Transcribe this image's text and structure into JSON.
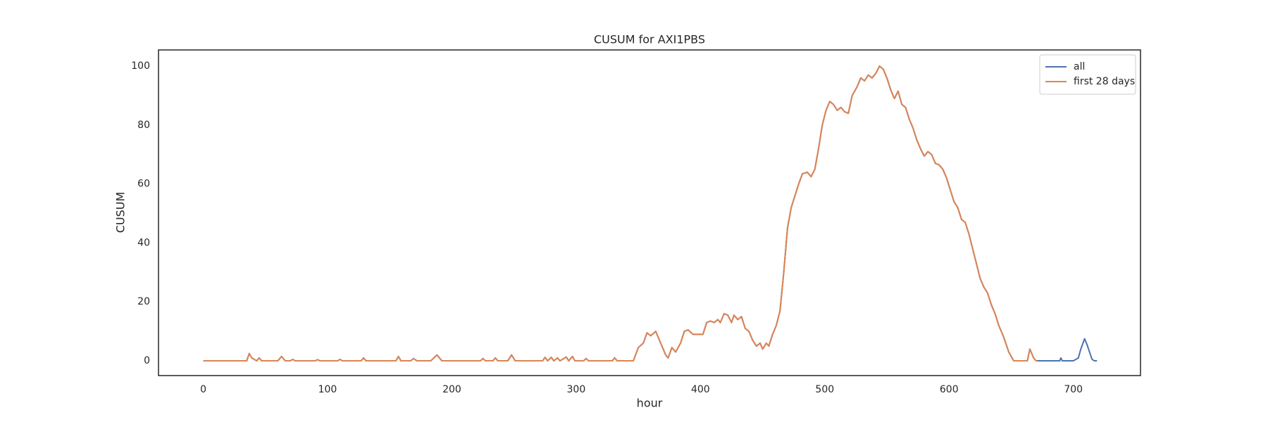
{
  "chart_data": {
    "type": "line",
    "title": "CUSUM for AXI1PBS",
    "x_label": "hour",
    "y_label": "CUSUM",
    "xlim": [
      -36,
      754
    ],
    "ylim": [
      -5,
      105.5
    ],
    "xticks": [
      0,
      100,
      200,
      300,
      400,
      500,
      600,
      700
    ],
    "yticks": [
      0,
      20,
      40,
      60,
      80,
      100
    ],
    "grid": false,
    "legend": "upper right",
    "series": [
      {
        "name": "all",
        "color": "#4c72b0",
        "x": [
          0,
          35,
          37,
          39,
          41,
          43,
          45,
          47,
          60,
          63,
          66,
          70,
          72,
          74,
          90,
          92,
          94,
          108,
          110,
          112,
          127,
          129,
          131,
          155,
          157,
          159,
          167,
          169,
          172,
          183,
          188,
          192,
          223,
          225,
          227,
          233,
          235,
          237,
          245,
          248,
          251,
          273,
          275,
          277,
          280,
          282,
          285,
          287,
          292,
          294,
          297,
          299,
          306,
          308,
          310,
          329,
          331,
          333,
          346,
          350,
          354,
          357,
          360,
          364,
          368,
          372,
          374,
          377,
          380,
          384,
          387,
          390,
          394,
          398,
          402,
          405,
          408,
          411,
          414,
          416,
          419,
          422,
          425,
          427,
          430,
          433,
          436,
          439,
          442,
          445,
          448,
          450,
          453,
          455,
          458,
          461,
          464,
          467,
          470,
          473,
          476,
          479,
          482,
          486,
          489,
          492,
          495,
          498,
          501,
          504,
          507,
          510,
          513,
          516,
          519,
          522,
          526,
          529,
          532,
          535,
          538,
          541,
          544,
          547,
          550,
          553,
          556,
          559,
          562,
          565,
          568,
          571,
          574,
          577,
          580,
          583,
          586,
          589,
          592,
          595,
          598,
          601,
          604,
          607,
          610,
          613,
          616,
          619,
          622,
          625,
          628,
          631,
          634,
          637,
          640,
          644,
          648,
          652,
          663,
          665,
          668,
          670,
          671,
          675,
          689,
          690,
          691,
          700,
          704,
          706,
          709,
          711,
          713,
          715,
          717,
          719
        ],
        "values": [
          0,
          0,
          2.5,
          1,
          0.5,
          0,
          1,
          0,
          0,
          1.5,
          0,
          0,
          0.5,
          0,
          0,
          0.4,
          0,
          0,
          0.5,
          0,
          0,
          1,
          0,
          0,
          1.5,
          0,
          0,
          0.8,
          0,
          0,
          2,
          0,
          0,
          0.8,
          0,
          0,
          1,
          0,
          0,
          2,
          0,
          0,
          1.2,
          0,
          1.2,
          0,
          1,
          0,
          1.3,
          0,
          1.5,
          0,
          0,
          0.8,
          0,
          0,
          1,
          0,
          0,
          4.5,
          6,
          9.5,
          8.5,
          10,
          6,
          2,
          1,
          4.5,
          3,
          6,
          10,
          10.5,
          9,
          9,
          9,
          13,
          13.5,
          13,
          14,
          13,
          16,
          15.5,
          13,
          15.5,
          14,
          15,
          11,
          10,
          7,
          5,
          6,
          4,
          6,
          5,
          9,
          12,
          17,
          30,
          45,
          52,
          56,
          60,
          63.5,
          64,
          62.5,
          65,
          72,
          80,
          85,
          88,
          87,
          85,
          86,
          84.5,
          84,
          90,
          93,
          96,
          95,
          97,
          96,
          97.5,
          100,
          99,
          96,
          92,
          89,
          91.5,
          87,
          86,
          82,
          79,
          75,
          72,
          69.5,
          71,
          70,
          67,
          66.5,
          65,
          62,
          58,
          54,
          52,
          48,
          47,
          43,
          38,
          33,
          28,
          25,
          23,
          19,
          16,
          12,
          8,
          3,
          0,
          0,
          4,
          1,
          0,
          0,
          0,
          0,
          1,
          0,
          0,
          1,
          4,
          7.5,
          5.5,
          3,
          0.5,
          0,
          0
        ]
      },
      {
        "name": "first 28 days",
        "color": "#dd8452",
        "x": [
          0,
          35,
          37,
          39,
          41,
          43,
          45,
          47,
          60,
          63,
          66,
          70,
          72,
          74,
          90,
          92,
          94,
          108,
          110,
          112,
          127,
          129,
          131,
          155,
          157,
          159,
          167,
          169,
          172,
          183,
          188,
          192,
          223,
          225,
          227,
          233,
          235,
          237,
          245,
          248,
          251,
          273,
          275,
          277,
          280,
          282,
          285,
          287,
          292,
          294,
          297,
          299,
          306,
          308,
          310,
          329,
          331,
          333,
          346,
          350,
          354,
          357,
          360,
          364,
          368,
          372,
          374,
          377,
          380,
          384,
          387,
          390,
          394,
          398,
          402,
          405,
          408,
          411,
          414,
          416,
          419,
          422,
          425,
          427,
          430,
          433,
          436,
          439,
          442,
          445,
          448,
          450,
          453,
          455,
          458,
          461,
          464,
          467,
          470,
          473,
          476,
          479,
          482,
          486,
          489,
          492,
          495,
          498,
          501,
          504,
          507,
          510,
          513,
          516,
          519,
          522,
          526,
          529,
          532,
          535,
          538,
          541,
          544,
          547,
          550,
          553,
          556,
          559,
          562,
          565,
          568,
          571,
          574,
          577,
          580,
          583,
          586,
          589,
          592,
          595,
          598,
          601,
          604,
          607,
          610,
          613,
          616,
          619,
          622,
          625,
          628,
          631,
          634,
          637,
          640,
          644,
          648,
          652,
          663,
          665,
          668,
          670,
          671
        ],
        "values": [
          0,
          0,
          2.5,
          1,
          0.5,
          0,
          1,
          0,
          0,
          1.5,
          0,
          0,
          0.5,
          0,
          0,
          0.4,
          0,
          0,
          0.5,
          0,
          0,
          1,
          0,
          0,
          1.5,
          0,
          0,
          0.8,
          0,
          0,
          2,
          0,
          0,
          0.8,
          0,
          0,
          1,
          0,
          0,
          2,
          0,
          0,
          1.2,
          0,
          1.2,
          0,
          1,
          0,
          1.3,
          0,
          1.5,
          0,
          0,
          0.8,
          0,
          0,
          1,
          0,
          0,
          4.5,
          6,
          9.5,
          8.5,
          10,
          6,
          2,
          1,
          4.5,
          3,
          6,
          10,
          10.5,
          9,
          9,
          9,
          13,
          13.5,
          13,
          14,
          13,
          16,
          15.5,
          13,
          15.5,
          14,
          15,
          11,
          10,
          7,
          5,
          6,
          4,
          6,
          5,
          9,
          12,
          17,
          30,
          45,
          52,
          56,
          60,
          63.5,
          64,
          62.5,
          65,
          72,
          80,
          85,
          88,
          87,
          85,
          86,
          84.5,
          84,
          90,
          93,
          96,
          95,
          97,
          96,
          97.5,
          100,
          99,
          96,
          92,
          89,
          91.5,
          87,
          86,
          82,
          79,
          75,
          72,
          69.5,
          71,
          70,
          67,
          66.5,
          65,
          62,
          58,
          54,
          52,
          48,
          47,
          43,
          38,
          33,
          28,
          25,
          23,
          19,
          16,
          12,
          8,
          3,
          0,
          0,
          4,
          1,
          0,
          0
        ]
      }
    ]
  }
}
